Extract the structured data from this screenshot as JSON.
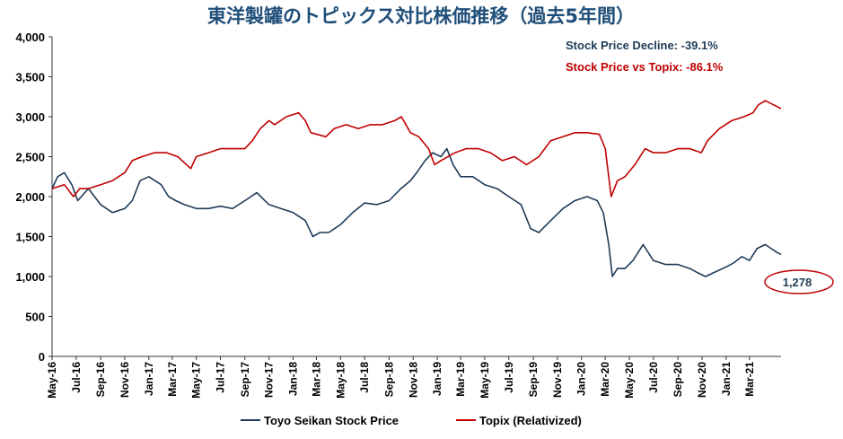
{
  "chart_data": {
    "type": "line",
    "title": "東洋製罐のトピックス対比株価推移（過去5年間）",
    "ylim": [
      0,
      4000
    ],
    "y_ticks": [
      "0",
      "500",
      "1,000",
      "1,500",
      "2,000",
      "2,500",
      "3,000",
      "3,500",
      "4,000"
    ],
    "x_range": [
      "2016-05-01",
      "2021-05-20"
    ],
    "x_ticks": [
      "May-16",
      "Jul-16",
      "Sep-16",
      "Nov-16",
      "Jan-17",
      "Mar-17",
      "May-17",
      "Jul-17",
      "Sep-17",
      "Nov-17",
      "Jan-18",
      "Mar-18",
      "May-18",
      "Jul-18",
      "Sep-18",
      "Nov-18",
      "Jan-19",
      "Mar-19",
      "May-19",
      "Jul-19",
      "Sep-19",
      "Nov-19",
      "Jan-20",
      "Mar-20",
      "May-20",
      "Jul-20",
      "Sep-20",
      "Nov-20",
      "Jan-21",
      "Mar-21"
    ],
    "grid": false,
    "legend_position": "bottom",
    "annotations": [
      {
        "text": "Stock Price Decline: -39.1%",
        "color": "#1f3b57"
      },
      {
        "text": "Stock Price vs Topix: -86.1%",
        "color": "#c00000"
      }
    ],
    "callout": {
      "text": "1,278",
      "border_color": "#c00000"
    },
    "series": [
      {
        "name": "Toyo Seikan Stock Price",
        "color": "#1f3b57",
        "x": [
          "2016-05-01",
          "2016-05-15",
          "2016-06-01",
          "2016-06-20",
          "2016-07-05",
          "2016-08-01",
          "2016-09-01",
          "2016-10-01",
          "2016-11-01",
          "2016-11-20",
          "2016-12-10",
          "2017-01-01",
          "2017-02-01",
          "2017-02-20",
          "2017-03-10",
          "2017-04-01",
          "2017-05-01",
          "2017-06-01",
          "2017-07-01",
          "2017-08-01",
          "2017-09-01",
          "2017-10-01",
          "2017-11-01",
          "2017-12-01",
          "2018-01-01",
          "2018-02-01",
          "2018-02-20",
          "2018-03-10",
          "2018-04-01",
          "2018-05-01",
          "2018-06-01",
          "2018-07-01",
          "2018-08-01",
          "2018-09-01",
          "2018-10-01",
          "2018-10-25",
          "2018-11-10",
          "2018-12-01",
          "2018-12-20",
          "2019-01-10",
          "2019-01-25",
          "2019-02-10",
          "2019-03-01",
          "2019-04-01",
          "2019-05-01",
          "2019-06-01",
          "2019-07-01",
          "2019-08-01",
          "2019-08-25",
          "2019-09-15",
          "2019-10-15",
          "2019-11-15",
          "2019-12-15",
          "2020-01-15",
          "2020-02-10",
          "2020-02-25",
          "2020-03-10",
          "2020-03-19",
          "2020-04-01",
          "2020-04-20",
          "2020-05-10",
          "2020-06-05",
          "2020-07-01",
          "2020-08-01",
          "2020-09-01",
          "2020-10-01",
          "2020-10-20",
          "2020-11-10",
          "2020-12-01",
          "2021-01-01",
          "2021-01-20",
          "2021-02-10",
          "2021-03-01",
          "2021-03-20",
          "2021-04-10",
          "2021-04-25",
          "2021-05-10",
          "2021-05-20"
        ],
        "y": [
          2100,
          2250,
          2300,
          2150,
          1950,
          2100,
          1900,
          1800,
          1850,
          1950,
          2200,
          2250,
          2150,
          2000,
          1950,
          1900,
          1850,
          1850,
          1880,
          1850,
          1950,
          2050,
          1900,
          1850,
          1800,
          1700,
          1500,
          1550,
          1550,
          1650,
          1800,
          1920,
          1900,
          1950,
          2100,
          2200,
          2300,
          2450,
          2550,
          2500,
          2600,
          2400,
          2250,
          2250,
          2150,
          2100,
          2000,
          1900,
          1600,
          1550,
          1700,
          1850,
          1950,
          2000,
          1950,
          1800,
          1400,
          1000,
          1100,
          1100,
          1200,
          1400,
          1200,
          1150,
          1150,
          1100,
          1050,
          1000,
          1050,
          1120,
          1170,
          1250,
          1200,
          1350,
          1400,
          1350,
          1300,
          1278
        ]
      },
      {
        "name": "Topix (Relativized)",
        "color": "#c00000",
        "x": [
          "2016-05-01",
          "2016-06-01",
          "2016-06-24",
          "2016-07-10",
          "2016-08-01",
          "2016-09-01",
          "2016-10-01",
          "2016-11-01",
          "2016-11-20",
          "2016-12-15",
          "2017-01-15",
          "2017-02-15",
          "2017-03-15",
          "2017-04-17",
          "2017-05-01",
          "2017-06-01",
          "2017-07-01",
          "2017-08-01",
          "2017-09-01",
          "2017-09-20",
          "2017-10-10",
          "2017-11-01",
          "2017-11-15",
          "2017-12-15",
          "2018-01-15",
          "2018-02-01",
          "2018-02-15",
          "2018-03-25",
          "2018-04-15",
          "2018-05-15",
          "2018-06-15",
          "2018-07-15",
          "2018-08-15",
          "2018-09-15",
          "2018-10-02",
          "2018-10-25",
          "2018-11-15",
          "2018-12-10",
          "2018-12-25",
          "2019-01-10",
          "2019-02-15",
          "2019-03-15",
          "2019-04-15",
          "2019-05-15",
          "2019-06-15",
          "2019-07-15",
          "2019-08-15",
          "2019-09-15",
          "2019-10-15",
          "2019-11-15",
          "2019-12-15",
          "2020-01-15",
          "2020-02-15",
          "2020-03-01",
          "2020-03-16",
          "2020-04-01",
          "2020-04-20",
          "2020-05-15",
          "2020-06-10",
          "2020-07-01",
          "2020-08-01",
          "2020-09-01",
          "2020-10-01",
          "2020-10-30",
          "2020-11-15",
          "2020-12-15",
          "2021-01-15",
          "2021-02-15",
          "2021-03-10",
          "2021-03-24",
          "2021-04-10",
          "2021-05-01",
          "2021-05-20"
        ],
        "y": [
          2100,
          2150,
          2000,
          2100,
          2100,
          2150,
          2200,
          2300,
          2450,
          2500,
          2550,
          2550,
          2500,
          2350,
          2500,
          2550,
          2600,
          2600,
          2600,
          2700,
          2850,
          2950,
          2900,
          3000,
          3050,
          2950,
          2800,
          2750,
          2850,
          2900,
          2850,
          2900,
          2900,
          2950,
          3000,
          2800,
          2750,
          2600,
          2400,
          2450,
          2550,
          2600,
          2600,
          2550,
          2450,
          2500,
          2400,
          2500,
          2700,
          2750,
          2800,
          2800,
          2780,
          2600,
          2000,
          2200,
          2250,
          2400,
          2600,
          2550,
          2550,
          2600,
          2600,
          2550,
          2700,
          2850,
          2950,
          3000,
          3050,
          3150,
          3200,
          3150,
          3100
        ]
      }
    ]
  }
}
